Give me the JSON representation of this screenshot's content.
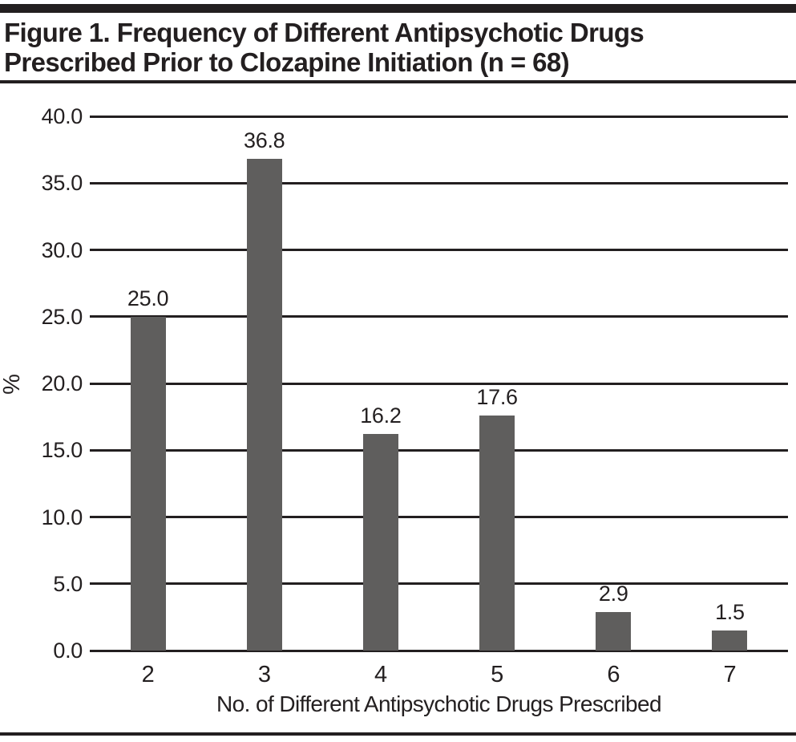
{
  "figure": {
    "title_lines": [
      "Figure 1. Frequency of Different Antipsychotic Drugs",
      "Prescribed Prior to Clozapine Initiation (n = 68)"
    ]
  },
  "chart_data": {
    "type": "bar",
    "title": "Figure 1. Frequency of Different Antipsychotic Drugs Prescribed Prior to Clozapine Initiation (n = 68)",
    "categories": [
      "2",
      "3",
      "4",
      "5",
      "6",
      "7"
    ],
    "values": [
      25.0,
      36.8,
      16.2,
      17.6,
      2.9,
      1.5
    ],
    "data_labels": [
      "25.0",
      "36.8",
      "16.2",
      "17.6",
      "2.9",
      "1.5"
    ],
    "xlabel": "No. of Different Antipsychotic Drugs Prescribed",
    "ylabel": "%",
    "ylim": [
      0,
      40
    ],
    "ytick_step": 5,
    "yticks": [
      "0.0",
      "5.0",
      "10.0",
      "15.0",
      "20.0",
      "25.0",
      "30.0",
      "35.0",
      "40.0"
    ],
    "grid": "horizontal-only",
    "legend": "none",
    "bar_color": "#5f5e5d",
    "line_color": "#231f20"
  }
}
